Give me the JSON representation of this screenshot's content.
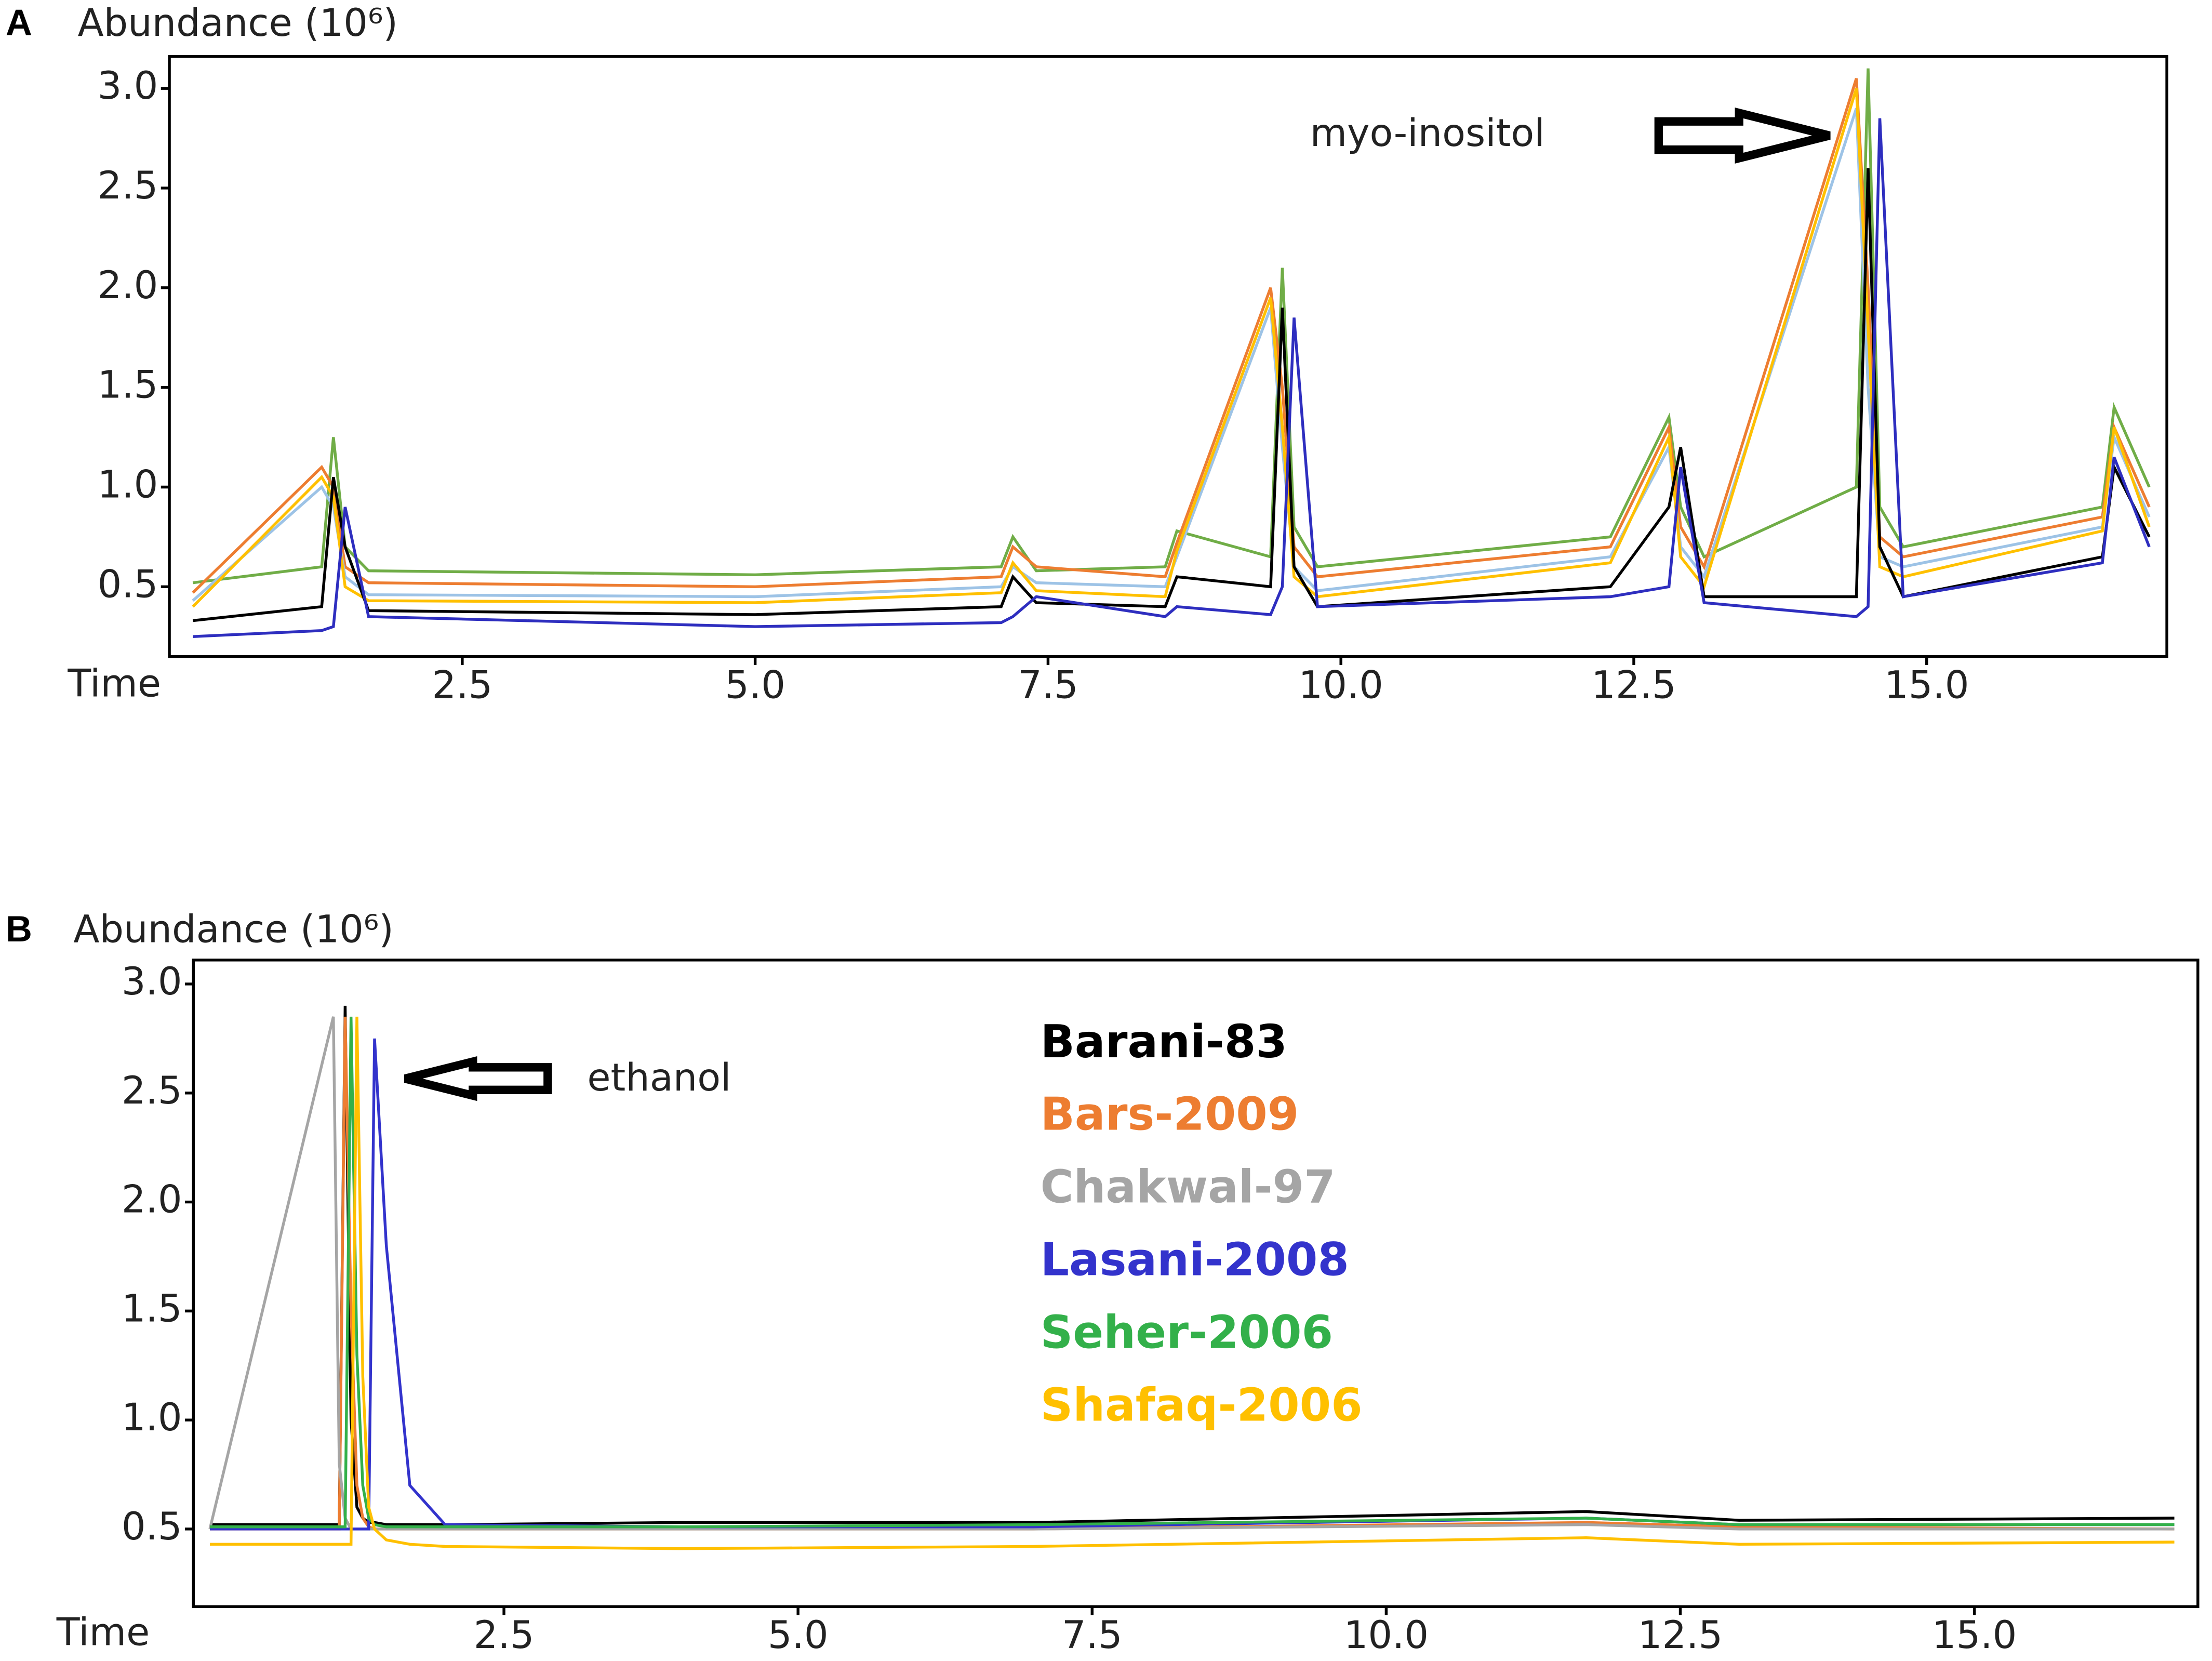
{
  "chart_data": [
    {
      "type": "line",
      "label": "A",
      "y_label": "Abundance (10⁶)",
      "x_label": "Time",
      "annotation": "myo-inositol",
      "xlim": [
        0,
        17.05
      ],
      "ylim": [
        0.15,
        3.16
      ],
      "xticks": [
        2.5,
        {
          "value": 5,
          "label": "5.0"
        },
        7.5,
        {
          "value": 10,
          "label": "10.0"
        },
        12.5,
        {
          "value": 15,
          "label": "15.0"
        }
      ],
      "yticks": [
        0.5,
        {
          "value": 1,
          "label": "1.0"
        },
        1.5,
        {
          "value": 2,
          "label": "2.0"
        },
        2.5,
        {
          "value": 3,
          "label": "3.0"
        }
      ],
      "x": [
        0.2,
        1.3,
        1.4,
        1.5,
        1.7,
        5.0,
        7.1,
        7.2,
        7.4,
        8.5,
        8.6,
        9.4,
        9.5,
        9.6,
        9.8,
        12.3,
        12.8,
        12.9,
        13.1,
        14.4,
        14.5,
        14.6,
        14.8,
        16.5,
        16.6,
        16.9
      ],
      "series": [
        {
          "color": "#70ad47",
          "values": [
            0.52,
            0.6,
            1.25,
            0.7,
            0.58,
            0.56,
            0.6,
            0.75,
            0.58,
            0.6,
            0.78,
            0.65,
            2.1,
            0.8,
            0.6,
            0.75,
            1.35,
            0.9,
            0.65,
            1.0,
            3.1,
            0.9,
            0.7,
            0.9,
            1.4,
            1.0
          ]
        },
        {
          "color": "#ed7d31",
          "values": [
            0.47,
            1.1,
            1.0,
            0.6,
            0.52,
            0.5,
            0.55,
            0.7,
            0.6,
            0.55,
            0.72,
            2.0,
            1.5,
            0.7,
            0.55,
            0.7,
            1.3,
            0.8,
            0.6,
            3.05,
            2.0,
            0.75,
            0.65,
            0.85,
            1.3,
            0.9
          ]
        },
        {
          "color": "#9dc3e6",
          "values": [
            0.43,
            1.0,
            0.9,
            0.55,
            0.46,
            0.45,
            0.5,
            0.6,
            0.52,
            0.5,
            0.65,
            1.9,
            1.2,
            0.6,
            0.48,
            0.65,
            1.2,
            0.7,
            0.55,
            2.9,
            1.5,
            0.65,
            0.6,
            0.8,
            1.25,
            0.85
          ]
        },
        {
          "color": "#ffc000",
          "values": [
            0.4,
            1.05,
            0.95,
            0.5,
            0.43,
            0.42,
            0.47,
            0.62,
            0.48,
            0.45,
            0.68,
            1.95,
            1.3,
            0.55,
            0.45,
            0.62,
            1.25,
            0.65,
            0.5,
            3.0,
            1.8,
            0.6,
            0.55,
            0.78,
            1.3,
            0.8
          ]
        },
        {
          "color": "#000000",
          "values": [
            0.33,
            0.4,
            1.05,
            0.7,
            0.38,
            0.36,
            0.4,
            0.55,
            0.42,
            0.4,
            0.55,
            0.5,
            1.9,
            0.6,
            0.4,
            0.5,
            0.9,
            1.2,
            0.45,
            0.45,
            2.6,
            0.7,
            0.45,
            0.65,
            1.1,
            0.75
          ]
        },
        {
          "color": "#2e2ebf",
          "values": [
            0.25,
            0.28,
            0.3,
            0.9,
            0.35,
            0.3,
            0.32,
            0.35,
            0.45,
            0.35,
            0.4,
            0.36,
            0.5,
            1.85,
            0.4,
            0.45,
            0.5,
            1.1,
            0.42,
            0.35,
            0.4,
            2.85,
            0.45,
            0.62,
            1.15,
            0.7
          ]
        }
      ]
    },
    {
      "type": "line",
      "label": "B",
      "y_label": "Abundance (10⁶)",
      "x_label": "Time",
      "annotation": "ethanol",
      "xlim": [
        -0.14,
        16.9
      ],
      "ylim": [
        0.144,
        3.11
      ],
      "xticks": [
        2.5,
        {
          "value": 5,
          "label": "5.0"
        },
        7.5,
        {
          "value": 10,
          "label": "10.0"
        },
        12.5,
        {
          "value": 15,
          "label": "15.0"
        }
      ],
      "yticks": [
        0.5,
        {
          "value": 1,
          "label": "1.0"
        },
        1.5,
        {
          "value": 2,
          "label": "2.0"
        },
        2.5,
        {
          "value": 3,
          "label": "3.0"
        }
      ],
      "x": [
        0.0,
        1.05,
        1.1,
        1.15,
        1.2,
        1.25,
        1.3,
        1.35,
        1.4,
        1.5,
        1.7,
        2.0,
        4.0,
        7.0,
        11.7,
        13.0,
        16.7
      ],
      "series": [
        {
          "name": "Barani-83",
          "color": "#000000",
          "values": [
            0.52,
            0.52,
            0.52,
            2.9,
            1.0,
            0.6,
            0.55,
            0.53,
            0.53,
            0.52,
            0.52,
            0.52,
            0.53,
            0.53,
            0.58,
            0.54,
            0.55
          ]
        },
        {
          "name": "Bars-2009",
          "color": "#ed7d31",
          "values": [
            0.5,
            0.5,
            0.5,
            2.85,
            1.5,
            0.7,
            0.55,
            0.51,
            0.5,
            0.5,
            0.5,
            0.5,
            0.5,
            0.5,
            0.53,
            0.51,
            0.5
          ]
        },
        {
          "name": "Chakwal-97",
          "color": "#a5a5a5",
          "values": [
            0.5,
            2.85,
            0.8,
            0.55,
            0.5,
            0.5,
            0.5,
            0.5,
            0.5,
            0.5,
            0.5,
            0.5,
            0.5,
            0.5,
            0.52,
            0.5,
            0.5
          ]
        },
        {
          "name": "Lasani-2008",
          "color": "#3333cc",
          "values": [
            0.5,
            0.5,
            0.5,
            0.5,
            0.5,
            0.5,
            0.5,
            0.5,
            2.75,
            1.8,
            0.7,
            0.52,
            0.51,
            0.51,
            0.55,
            0.52,
            0.52
          ]
        },
        {
          "name": "Seher-2006",
          "color": "#33b04a",
          "values": [
            0.51,
            0.51,
            0.51,
            0.51,
            2.85,
            1.3,
            0.7,
            0.55,
            0.52,
            0.51,
            0.51,
            0.51,
            0.51,
            0.52,
            0.55,
            0.52,
            0.52
          ]
        },
        {
          "name": "Shafaq-2006",
          "color": "#ffc000",
          "values": [
            0.43,
            0.43,
            0.43,
            0.43,
            0.43,
            2.85,
            1.2,
            0.6,
            0.5,
            0.45,
            0.43,
            0.42,
            0.41,
            0.42,
            0.46,
            0.43,
            0.44
          ]
        }
      ]
    }
  ]
}
